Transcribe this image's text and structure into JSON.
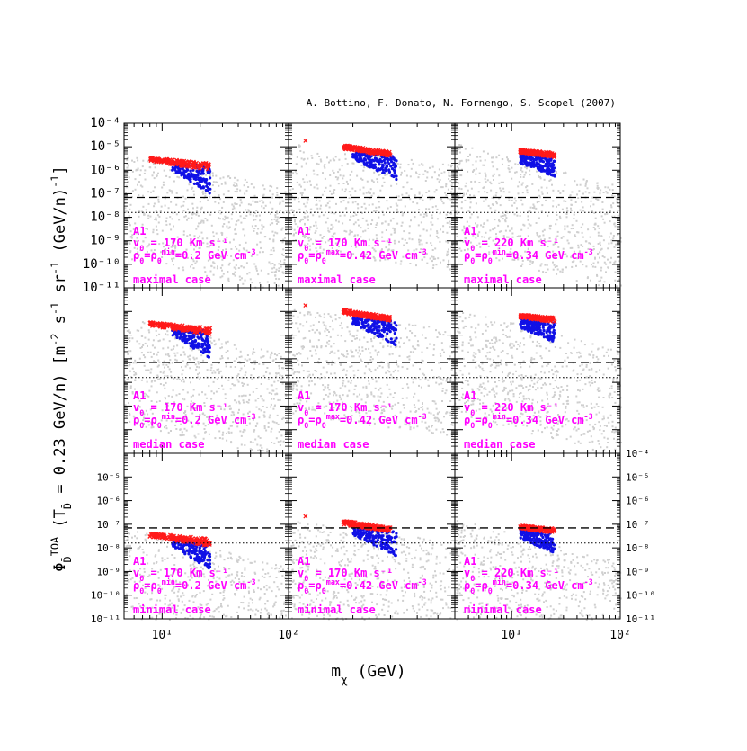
{
  "colors": {
    "background": "#ffffff",
    "axis": "#000000",
    "scan": "#cfcfcf",
    "blue": "#1010e6",
    "red": "#ff1a1a",
    "magenta": "#ff00ff"
  },
  "chart_data": {
    "type": "scatter",
    "title": "A. Bottino, F. Donato, N. Fornengo, S. Scopel (2007)",
    "xlabel": "mχ (GeV)",
    "ylabel": "ΦD̄TOA (TD̄ = 0.23 GeV/n) [m⁻² s⁻¹ sr⁻¹ (GeV/n)⁻¹]",
    "xscale": "log",
    "yscale": "log",
    "ylim": [
      1e-11,
      0.0001
    ],
    "x_tick_labels": {
      "col0": "10¹",
      "col1_left": "10²",
      "col2": "10¹",
      "col2_right": "10²"
    },
    "y_tick_labels": [
      "10⁻⁴",
      "10⁻⁵",
      "10⁻⁶",
      "10⁻⁷",
      "10⁻⁸",
      "10⁻⁹",
      "10⁻¹⁰",
      "10⁻¹¹"
    ],
    "columns": [
      {
        "xlim": [
          5,
          100
        ],
        "label_model": "A1",
        "label_v0": "v0 = 170 Km s⁻¹",
        "label_rho": "ρ0=ρ0min=0.2 GeV cm⁻³",
        "red_range": [
          8,
          24
        ],
        "red_top": [
          3.5e-06,
          2e-06
        ],
        "red_bottom": [
          2.5e-06,
          1e-06
        ],
        "blue_range": [
          12,
          24
        ],
        "blue_top": [
          2.5e-06,
          1.5e-06
        ],
        "blue_bottom": [
          1e-06,
          1e-07
        ],
        "isolated_red": null
      },
      {
        "xlim": [
          100,
          600
        ],
        "label_model": "A1",
        "label_v0": "v0 = 170 Km s⁻¹",
        "label_rho": "ρ0=ρ0max=0.42 GeV cm⁻³",
        "red_range": [
          180,
          300
        ],
        "red_top": [
          1.2e-05,
          6e-06
        ],
        "red_bottom": [
          8e-06,
          4e-06
        ],
        "blue_range": [
          200,
          320
        ],
        "blue_top": [
          6e-06,
          4e-06
        ],
        "blue_bottom": [
          3e-06,
          3.5e-07
        ],
        "isolated_red": [
          120,
          1.8e-05
        ]
      },
      {
        "xlim": [
          3,
          100
        ],
        "label_model": "A1",
        "label_v0": "v0 = 220 Km s⁻¹",
        "label_rho": "ρ0=ρ0min=0.34 GeV cm⁻³",
        "red_range": [
          12,
          25
        ],
        "red_top": [
          7.5e-06,
          5.5e-06
        ],
        "red_bottom": [
          5.5e-06,
          3.5e-06
        ],
        "blue_range": [
          12,
          25
        ],
        "blue_top": [
          5e-06,
          3.5e-06
        ],
        "blue_bottom": [
          2e-06,
          5e-07
        ],
        "isolated_red": null
      }
    ],
    "rows": [
      {
        "case_label": "maximal case",
        "dashed_level": 7e-08,
        "dotted_level": 1.6e-08,
        "signal_scale": 1.0
      },
      {
        "case_label": "median case",
        "dashed_level": 7e-08,
        "dotted_level": 1.6e-08,
        "signal_scale": 1.0
      },
      {
        "case_label": "minimal case",
        "dashed_level": 7e-08,
        "dotted_level": 1.6e-08,
        "signal_scale": 0.012
      }
    ],
    "series": [
      {
        "name": "scan",
        "color": "#cfcfcf",
        "marker": "dot"
      },
      {
        "name": "blue",
        "color": "#1010e6",
        "marker": "dot"
      },
      {
        "name": "red",
        "color": "#ff1a1a",
        "marker": "cross"
      }
    ]
  }
}
